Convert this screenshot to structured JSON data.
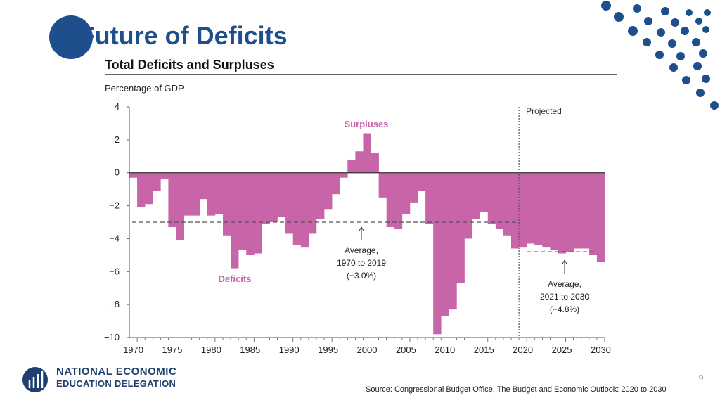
{
  "slide": {
    "title": "A Future of Deficits",
    "page_number": "9",
    "source": "Source: Congressional Budget Office, The Budget and Economic Outlook: 2020 to 2030",
    "logo": {
      "line1": "NATIONAL ECONOMIC",
      "line2": "EDUCATION DELEGATION"
    }
  },
  "colors": {
    "accent": "#1f4e8c",
    "bars": "#c864a8",
    "dots": "#1f4e8c"
  },
  "chart_data": {
    "type": "bar",
    "title": "Total Deficits and Surpluses",
    "ylabel": "Percentage of GDP",
    "xlabel": "",
    "ylim": [
      -10,
      4
    ],
    "yticks": [
      4,
      2,
      0,
      -2,
      -4,
      -6,
      -8,
      -10
    ],
    "ytick_labels": [
      "4",
      "2",
      "0",
      "−2",
      "−4",
      "−6",
      "−8",
      "−10"
    ],
    "xticks": [
      1970,
      1975,
      1980,
      1985,
      1990,
      1995,
      2000,
      2005,
      2010,
      2015,
      2020,
      2025,
      2030
    ],
    "x": [
      1970,
      1971,
      1972,
      1973,
      1974,
      1975,
      1976,
      1977,
      1978,
      1979,
      1980,
      1981,
      1982,
      1983,
      1984,
      1985,
      1986,
      1987,
      1988,
      1989,
      1990,
      1991,
      1992,
      1993,
      1994,
      1995,
      1996,
      1997,
      1998,
      1999,
      2000,
      2001,
      2002,
      2003,
      2004,
      2005,
      2006,
      2007,
      2008,
      2009,
      2010,
      2011,
      2012,
      2013,
      2014,
      2015,
      2016,
      2017,
      2018,
      2019,
      2020,
      2021,
      2022,
      2023,
      2024,
      2025,
      2026,
      2027,
      2028,
      2029,
      2030
    ],
    "values": [
      -0.3,
      -2.1,
      -1.9,
      -1.1,
      -0.4,
      -3.3,
      -4.1,
      -2.6,
      -2.6,
      -1.6,
      -2.6,
      -2.5,
      -3.8,
      -5.8,
      -4.7,
      -5.0,
      -4.9,
      -3.1,
      -3.0,
      -2.7,
      -3.7,
      -4.4,
      -4.5,
      -3.7,
      -2.8,
      -2.2,
      -1.3,
      -0.3,
      0.8,
      1.3,
      2.4,
      1.2,
      -1.5,
      -3.3,
      -3.4,
      -2.5,
      -1.8,
      -1.1,
      -3.1,
      -9.8,
      -8.7,
      -8.3,
      -6.7,
      -4.0,
      -2.8,
      -2.4,
      -3.1,
      -3.4,
      -3.8,
      -4.6,
      -4.5,
      -4.3,
      -4.4,
      -4.5,
      -4.7,
      -4.9,
      -4.8,
      -4.6,
      -4.6,
      -5.0,
      -5.4
    ],
    "projected_from": 2020,
    "projected_label": "Projected",
    "surpluses_label": "Surpluses",
    "deficits_label": "Deficits",
    "average_historic": {
      "value": -3.0,
      "range": [
        1970,
        2019
      ],
      "label_lines": [
        "Average,",
        "1970 to 2019",
        "(−3.0%)"
      ]
    },
    "average_projected": {
      "value": -4.8,
      "range": [
        2021,
        2030
      ],
      "label_lines": [
        "Average,",
        "2021 to 2030",
        "(−4.8%)"
      ]
    }
  }
}
